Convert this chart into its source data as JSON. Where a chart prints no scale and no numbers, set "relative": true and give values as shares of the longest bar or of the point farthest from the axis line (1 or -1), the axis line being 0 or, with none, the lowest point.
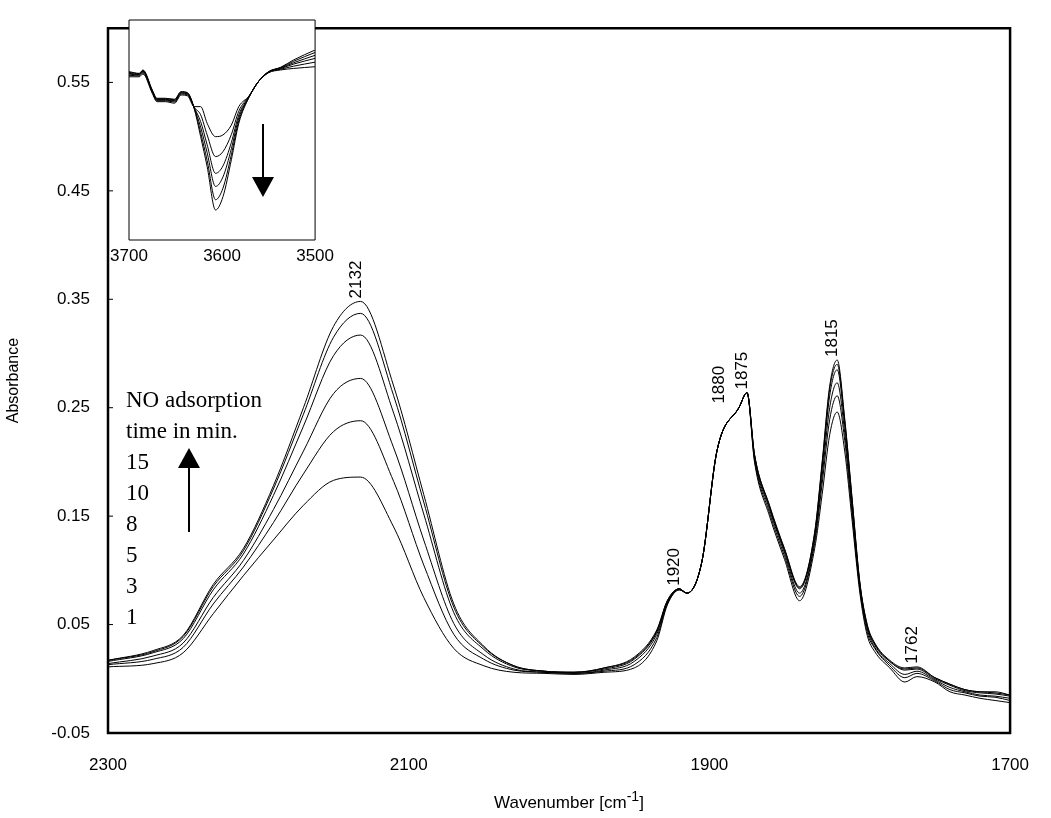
{
  "chart_data": [
    {
      "type": "line",
      "xlabel": "Wavenumber [cm$^{-1}$]",
      "ylabel": "Absorbance",
      "marker": "none",
      "x": [
        2300,
        2270,
        2250,
        2230,
        2210,
        2190,
        2170,
        2150,
        2132,
        2110,
        2090,
        2070,
        2050,
        2030,
        2010,
        1990,
        1970,
        1950,
        1935,
        1928,
        1920,
        1915,
        1905,
        1895,
        1880,
        1875,
        1870,
        1860,
        1850,
        1840,
        1830,
        1825,
        1820,
        1815,
        1810,
        1805,
        1800,
        1795,
        1790,
        1780,
        1770,
        1762,
        1750,
        1740,
        1730,
        1720,
        1710,
        1700
      ],
      "xlim": [
        2300,
        1700
      ],
      "xticks": [
        2300,
        2100,
        1900,
        1700
      ],
      "ylim": [
        -0.05,
        0.6
      ],
      "yticks": [
        -0.05,
        0.05,
        0.15,
        0.25,
        0.35,
        0.45,
        0.55
      ],
      "series": [
        {
          "color": "#000000",
          "values": [
            0.017,
            0.026,
            0.04,
            0.087,
            0.12,
            0.178,
            0.25,
            0.325,
            0.348,
            0.27,
            0.17,
            0.069,
            0.03,
            0.012,
            0.007,
            0.006,
            0.01,
            0.02,
            0.045,
            0.072,
            0.083,
            0.079,
            0.108,
            0.21,
            0.251,
            0.264,
            0.207,
            0.16,
            0.12,
            0.085,
            0.135,
            0.2,
            0.27,
            0.294,
            0.24,
            0.165,
            0.09,
            0.05,
            0.033,
            0.017,
            0.01,
            0.011,
            0.001,
            -0.005,
            -0.01,
            -0.012,
            -0.012,
            -0.015
          ]
        },
        {
          "color": "#000000",
          "values": [
            0.017,
            0.025,
            0.039,
            0.085,
            0.118,
            0.175,
            0.244,
            0.315,
            0.337,
            0.261,
            0.163,
            0.066,
            0.029,
            0.012,
            0.007,
            0.006,
            0.01,
            0.019,
            0.044,
            0.072,
            0.083,
            0.079,
            0.108,
            0.21,
            0.251,
            0.264,
            0.207,
            0.159,
            0.119,
            0.084,
            0.134,
            0.198,
            0.267,
            0.29,
            0.238,
            0.164,
            0.089,
            0.049,
            0.032,
            0.016,
            0.009,
            0.01,
            0.001,
            -0.005,
            -0.01,
            -0.012,
            -0.013,
            -0.015
          ]
        },
        {
          "color": "#000000",
          "values": [
            0.016,
            0.024,
            0.037,
            0.082,
            0.115,
            0.169,
            0.233,
            0.298,
            0.317,
            0.245,
            0.152,
            0.061,
            0.027,
            0.011,
            0.007,
            0.006,
            0.009,
            0.018,
            0.043,
            0.071,
            0.083,
            0.079,
            0.108,
            0.21,
            0.251,
            0.264,
            0.206,
            0.158,
            0.118,
            0.083,
            0.132,
            0.194,
            0.261,
            0.285,
            0.234,
            0.161,
            0.088,
            0.048,
            0.031,
            0.016,
            0.008,
            0.009,
            0,
            -0.006,
            -0.011,
            -0.013,
            -0.014,
            -0.016
          ]
        },
        {
          "color": "#000000",
          "values": [
            0.014,
            0.021,
            0.033,
            0.075,
            0.109,
            0.156,
            0.21,
            0.263,
            0.277,
            0.213,
            0.128,
            0.051,
            0.022,
            0.009,
            0.006,
            0.005,
            0.008,
            0.016,
            0.041,
            0.07,
            0.083,
            0.079,
            0.108,
            0.21,
            0.251,
            0.264,
            0.204,
            0.156,
            0.116,
            0.079,
            0.128,
            0.187,
            0.25,
            0.273,
            0.227,
            0.156,
            0.086,
            0.046,
            0.029,
            0.014,
            0.004,
            0.007,
            -0.001,
            -0.008,
            -0.012,
            -0.015,
            -0.016,
            -0.018
          ]
        },
        {
          "color": "#000000",
          "values": [
            0.013,
            0.018,
            0.029,
            0.069,
            0.103,
            0.144,
            0.189,
            0.228,
            0.238,
            0.182,
            0.105,
            0.041,
            0.018,
            0.008,
            0.006,
            0.005,
            0.007,
            0.013,
            0.038,
            0.069,
            0.082,
            0.079,
            0.108,
            0.21,
            0.251,
            0.264,
            0.202,
            0.153,
            0.113,
            0.076,
            0.125,
            0.18,
            0.239,
            0.261,
            0.22,
            0.151,
            0.083,
            0.043,
            0.028,
            0.012,
            0.001,
            0.005,
            -0.002,
            -0.01,
            -0.013,
            -0.016,
            -0.017,
            -0.02
          ]
        },
        {
          "color": "#000000",
          "values": [
            0.011,
            0.014,
            0.024,
            0.06,
            0.095,
            0.128,
            0.16,
            0.183,
            0.186,
            0.14,
            0.075,
            0.028,
            0.012,
            0.006,
            0.005,
            0.004,
            0.006,
            0.01,
            0.035,
            0.068,
            0.082,
            0.079,
            0.108,
            0.21,
            0.251,
            0.264,
            0.2,
            0.15,
            0.11,
            0.072,
            0.12,
            0.17,
            0.225,
            0.246,
            0.21,
            0.145,
            0.08,
            0.04,
            0.025,
            0.01,
            -0.003,
            0.002,
            -0.003,
            -0.012,
            -0.015,
            -0.018,
            -0.02,
            -0.022
          ]
        }
      ],
      "annotations": [
        "NO adsorption time in min.",
        "15",
        "10",
        "8",
        "5",
        "3",
        "1",
        {
          "text": "2132",
          "x": 2132,
          "y": 0.348
        },
        {
          "text": "1920",
          "x": 1920,
          "y": 0.083
        },
        {
          "text": "1880",
          "x": 1880,
          "y": 0.251
        },
        {
          "text": "1875",
          "x": 1875,
          "y": 0.264
        },
        {
          "text": "1815",
          "x": 1815,
          "y": 0.294
        },
        {
          "text": "1762",
          "x": 1762,
          "y": 0.011
        }
      ]
    },
    {
      "type": "line",
      "relative": true,
      "marker": "none",
      "tick_labels": "x",
      "x": [
        3700,
        3689,
        3685,
        3675,
        3670,
        3661,
        3651,
        3644,
        3637,
        3630,
        3623,
        3616,
        3607,
        3599,
        3590,
        3582,
        3571,
        3561,
        3550,
        3537,
        3523,
        3500
      ],
      "xlim": [
        3700,
        3500
      ],
      "xticks": [
        3700,
        3600,
        3500
      ],
      "series": [
        {
          "color": "#000000",
          "values": [
            0.886,
            0.877,
            0.895,
            0.79,
            0.746,
            0.746,
            0.741,
            0.781,
            0.775,
            0.693,
            0.544,
            0.386,
            0.158,
            0.228,
            0.422,
            0.614,
            0.751,
            0.833,
            0.886,
            0.909,
            0.948,
            1
          ]
        },
        {
          "color": "#000000",
          "values": [
            0.883,
            0.875,
            0.892,
            0.787,
            0.743,
            0.743,
            0.738,
            0.779,
            0.773,
            0.694,
            0.566,
            0.418,
            0.212,
            0.273,
            0.448,
            0.627,
            0.752,
            0.833,
            0.885,
            0.907,
            0.941,
            0.987
          ]
        },
        {
          "color": "#000000",
          "values": [
            0.878,
            0.871,
            0.888,
            0.784,
            0.74,
            0.74,
            0.734,
            0.775,
            0.77,
            0.696,
            0.594,
            0.459,
            0.282,
            0.332,
            0.48,
            0.642,
            0.753,
            0.833,
            0.885,
            0.905,
            0.933,
            0.972
          ]
        },
        {
          "color": "#000000",
          "values": [
            0.873,
            0.869,
            0.885,
            0.781,
            0.737,
            0.737,
            0.731,
            0.773,
            0.767,
            0.698,
            0.623,
            0.501,
            0.351,
            0.39,
            0.513,
            0.658,
            0.755,
            0.833,
            0.884,
            0.902,
            0.926,
            0.956
          ]
        },
        {
          "color": "#000000",
          "values": [
            0.867,
            0.864,
            0.88,
            0.777,
            0.733,
            0.733,
            0.726,
            0.768,
            0.763,
            0.699,
            0.659,
            0.553,
            0.439,
            0.465,
            0.555,
            0.678,
            0.757,
            0.833,
            0.882,
            0.899,
            0.915,
            0.936
          ]
        },
        {
          "color": "#000000",
          "values": [
            0.859,
            0.859,
            0.874,
            0.772,
            0.728,
            0.728,
            0.72,
            0.763,
            0.758,
            0.702,
            0.702,
            0.614,
            0.544,
            0.553,
            0.605,
            0.702,
            0.758,
            0.833,
            0.88,
            0.895,
            0.903,
            0.912
          ]
        }
      ]
    }
  ]
}
